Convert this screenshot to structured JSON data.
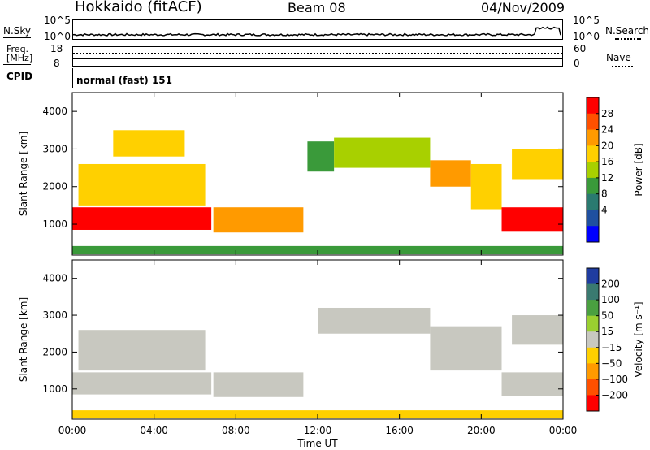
{
  "header": {
    "title": "Hokkaido (fitACF)",
    "beam": "Beam 08",
    "date": "04/Nov/2009"
  },
  "nsky_panel": {
    "left_label": "N.Sky",
    "left_ticks": [
      "10^5",
      "10^0"
    ],
    "right_label": "N.Search",
    "right_ticks": [
      "10^5",
      "10^0"
    ]
  },
  "freq_panel": {
    "left_label_1": "Freq.",
    "left_label_2": "[MHz]",
    "left_ticks": [
      "18",
      "8"
    ],
    "right_label": "Nave",
    "right_ticks": [
      "60",
      "0"
    ]
  },
  "cpid_panel": {
    "label": "CPID",
    "mode": "normal (fast) 151"
  },
  "chart_data": [
    {
      "type": "heatmap",
      "quantity": "Power",
      "ylabel": "Slant Range [km]",
      "xlabel": "Time UT",
      "ylim": [
        180,
        4500
      ],
      "xlim": [
        0,
        24
      ],
      "y_ticks": [
        "1000",
        "2000",
        "3000",
        "4000"
      ],
      "x_ticks": [
        "00:00",
        "04:00",
        "08:00",
        "12:00",
        "16:00",
        "20:00",
        "00:00"
      ],
      "colorbar": {
        "label": "Power [dB]",
        "ticks": [
          "28",
          "24",
          "20",
          "16",
          "12",
          "8",
          "4"
        ],
        "colors": [
          "#ff0000",
          "#ff5000",
          "#ff9a00",
          "#ffd000",
          "#a8d000",
          "#3a9a3a",
          "#2a7a70",
          "#1f50a0",
          "#0000ff"
        ]
      },
      "regions": [
        {
          "t0": 0.0,
          "t1": 6.8,
          "r0": 850,
          "r1": 1450,
          "level": 28
        },
        {
          "t0": 0.3,
          "t1": 6.5,
          "r0": 1500,
          "r1": 2600,
          "level": 18
        },
        {
          "t0": 2.0,
          "t1": 5.5,
          "r0": 2800,
          "r1": 3500,
          "level": 16
        },
        {
          "t0": 6.9,
          "t1": 11.3,
          "r0": 780,
          "r1": 1450,
          "level": 20
        },
        {
          "t0": 11.5,
          "t1": 12.8,
          "r0": 2400,
          "r1": 3200,
          "level": 10
        },
        {
          "t0": 12.8,
          "t1": 17.5,
          "r0": 2500,
          "r1": 3300,
          "level": 14
        },
        {
          "t0": 17.5,
          "t1": 19.5,
          "r0": 2000,
          "r1": 2700,
          "level": 22
        },
        {
          "t0": 19.5,
          "t1": 21.0,
          "r0": 1400,
          "r1": 2600,
          "level": 18
        },
        {
          "t0": 21.0,
          "t1": 24.0,
          "r0": 800,
          "r1": 1450,
          "level": 28
        },
        {
          "t0": 21.5,
          "t1": 24.0,
          "r0": 2200,
          "r1": 3000,
          "level": 16
        },
        {
          "t0": 0.0,
          "t1": 24.0,
          "r0": 200,
          "r1": 420,
          "level": 10
        }
      ]
    },
    {
      "type": "heatmap",
      "quantity": "Velocity",
      "ylabel": "Slant Range [km]",
      "xlabel": "Time UT",
      "ylim": [
        180,
        4500
      ],
      "xlim": [
        0,
        24
      ],
      "y_ticks": [
        "1000",
        "2000",
        "3000",
        "4000"
      ],
      "x_ticks": [
        "00:00",
        "04:00",
        "08:00",
        "12:00",
        "16:00",
        "20:00",
        "00:00"
      ],
      "colorbar": {
        "label": "Velocity [m s⁻¹]",
        "ticks": [
          "200",
          "100",
          "50",
          "15",
          "−15",
          "−50",
          "−100",
          "−200"
        ],
        "colors": [
          "#1f3ca0",
          "#3a7a70",
          "#4aa040",
          "#9ad030",
          "#c8c8c0",
          "#ffd000",
          "#ff9a00",
          "#ff5000",
          "#ff0000"
        ]
      },
      "regions": [
        {
          "t0": 0.0,
          "t1": 6.8,
          "r0": 850,
          "r1": 1450,
          "level": 0
        },
        {
          "t0": 0.3,
          "t1": 6.5,
          "r0": 1500,
          "r1": 2600,
          "level": 0
        },
        {
          "t0": 6.9,
          "t1": 11.3,
          "r0": 780,
          "r1": 1450,
          "level": 0
        },
        {
          "t0": 12.0,
          "t1": 17.5,
          "r0": 2500,
          "r1": 3200,
          "level": 0
        },
        {
          "t0": 17.5,
          "t1": 21.0,
          "r0": 1500,
          "r1": 2700,
          "level": 10
        },
        {
          "t0": 21.0,
          "t1": 24.0,
          "r0": 800,
          "r1": 1450,
          "level": 0
        },
        {
          "t0": 21.5,
          "t1": 24.0,
          "r0": 2200,
          "r1": 3000,
          "level": 0
        },
        {
          "t0": 0.0,
          "t1": 24.0,
          "r0": 200,
          "r1": 420,
          "level": -40
        }
      ]
    }
  ]
}
